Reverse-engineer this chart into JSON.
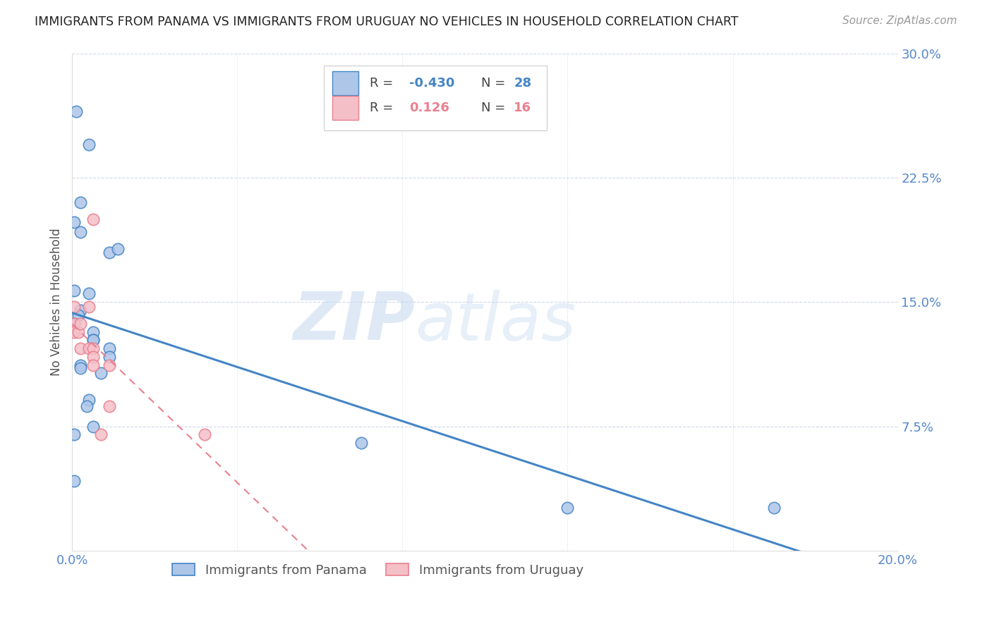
{
  "title": "IMMIGRANTS FROM PANAMA VS IMMIGRANTS FROM URUGUAY NO VEHICLES IN HOUSEHOLD CORRELATION CHART",
  "source": "Source: ZipAtlas.com",
  "ylabel": "No Vehicles in Household",
  "xlim": [
    0.0,
    0.2
  ],
  "ylim": [
    0.0,
    0.3
  ],
  "panama_R": -0.43,
  "panama_N": 28,
  "uruguay_R": 0.126,
  "uruguay_N": 16,
  "panama_color": "#aec6e8",
  "panama_line_color": "#4485c5",
  "uruguay_color": "#f5bfc8",
  "uruguay_line_color": "#e8808e",
  "panama_x": [
    0.001,
    0.004,
    0.002,
    0.0005,
    0.002,
    0.009,
    0.0005,
    0.004,
    0.002,
    0.0015,
    0.0005,
    0.005,
    0.005,
    0.005,
    0.009,
    0.009,
    0.002,
    0.002,
    0.007,
    0.011,
    0.004,
    0.0035,
    0.005,
    0.0005,
    0.0005,
    0.12,
    0.17,
    0.07
  ],
  "panama_y": [
    0.265,
    0.245,
    0.21,
    0.198,
    0.192,
    0.18,
    0.157,
    0.155,
    0.145,
    0.142,
    0.137,
    0.132,
    0.127,
    0.127,
    0.122,
    0.117,
    0.112,
    0.11,
    0.107,
    0.182,
    0.091,
    0.087,
    0.075,
    0.07,
    0.042,
    0.026,
    0.026,
    0.065
  ],
  "uruguay_x": [
    0.0005,
    0.0005,
    0.0005,
    0.0015,
    0.002,
    0.002,
    0.004,
    0.004,
    0.005,
    0.005,
    0.005,
    0.007,
    0.009,
    0.009,
    0.005,
    0.032
  ],
  "uruguay_y": [
    0.147,
    0.137,
    0.132,
    0.132,
    0.137,
    0.122,
    0.147,
    0.122,
    0.122,
    0.117,
    0.112,
    0.07,
    0.112,
    0.087,
    0.2,
    0.07
  ],
  "watermark_zip": "ZIP",
  "watermark_atlas": "atlas",
  "background_color": "#ffffff",
  "axis_tick_color": "#5588cc",
  "grid_color_h": "#d0d8e8",
  "grid_color_v": "#d8dde8",
  "legend_R_color": "#4485c5",
  "legend_R2_color": "#e8808e",
  "legend_N_color": "#4485c5",
  "legend_N2_color": "#e8808e"
}
